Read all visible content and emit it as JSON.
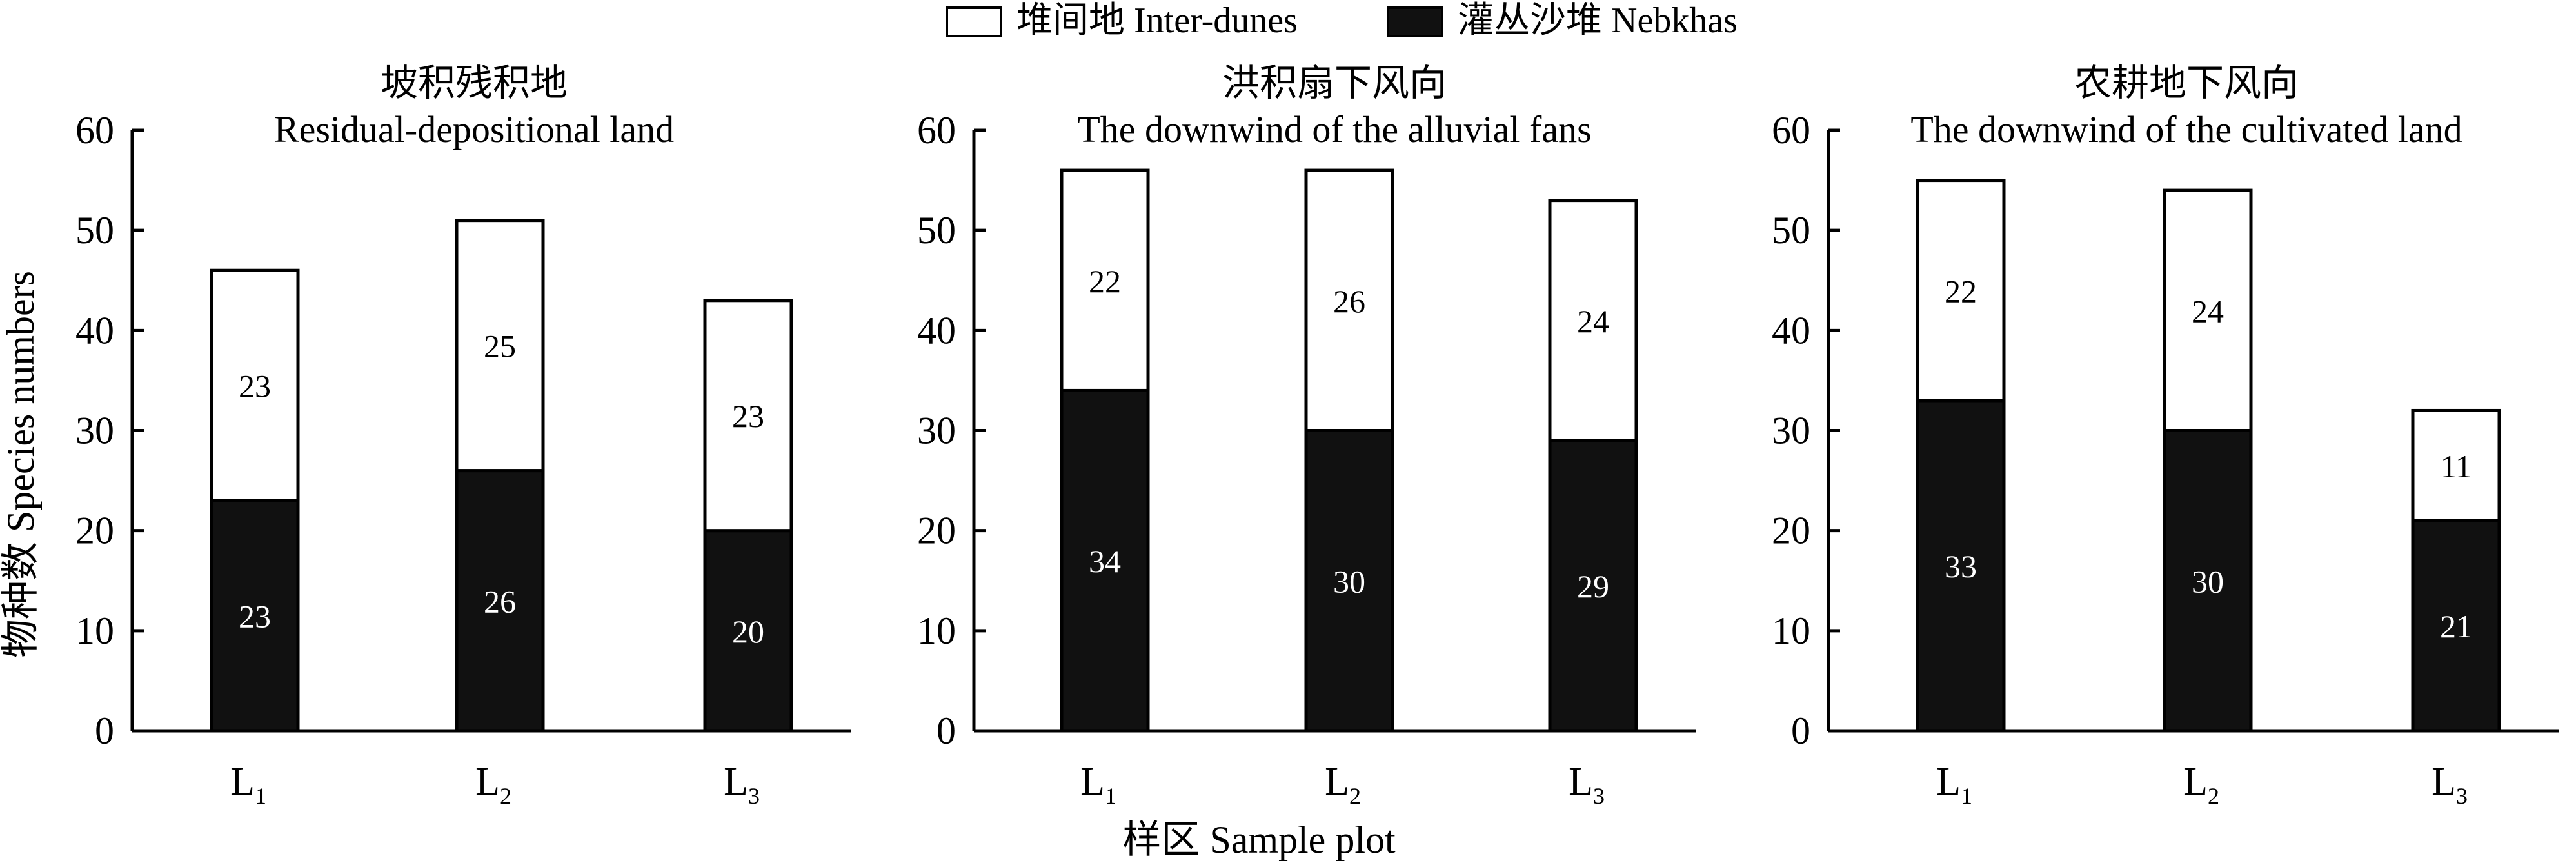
{
  "legend": {
    "items": [
      {
        "label": "堆间地 Inter-dunes",
        "color": "#ffffff"
      },
      {
        "label": "灌丛沙堆 Nebkhas",
        "color": "#111111"
      }
    ],
    "placement": "top-center"
  },
  "ylabel": "物种数 Species numbers",
  "xlabel": "样区 Sample plot",
  "chart_data": [
    {
      "type": "bar",
      "stacked": true,
      "title_cn": "坡积残积地",
      "title_en": "Residual-depositional land",
      "categories": [
        {
          "base": "L",
          "sub": "1"
        },
        {
          "base": "L",
          "sub": "2"
        },
        {
          "base": "L",
          "sub": "3"
        }
      ],
      "series": [
        {
          "name": "灌丛沙堆 Nebkhas",
          "values": [
            23,
            26,
            20
          ]
        },
        {
          "name": "堆间地 Inter-dunes",
          "values": [
            23,
            25,
            23
          ]
        }
      ],
      "ylim": [
        0,
        60
      ],
      "yticks": [
        0,
        10,
        20,
        30,
        40,
        50,
        60
      ],
      "grid": false
    },
    {
      "type": "bar",
      "stacked": true,
      "title_cn": "洪积扇下风向",
      "title_en": "The downwind of the alluvial fans",
      "categories": [
        {
          "base": "L",
          "sub": "1"
        },
        {
          "base": "L",
          "sub": "2"
        },
        {
          "base": "L",
          "sub": "3"
        }
      ],
      "series": [
        {
          "name": "灌丛沙堆 Nebkhas",
          "values": [
            34,
            30,
            29
          ]
        },
        {
          "name": "堆间地 Inter-dunes",
          "values": [
            22,
            26,
            24
          ]
        }
      ],
      "ylim": [
        0,
        60
      ],
      "yticks": [
        0,
        10,
        20,
        30,
        40,
        50,
        60
      ],
      "grid": false
    },
    {
      "type": "bar",
      "stacked": true,
      "title_cn": "农耕地下风向",
      "title_en": "The downwind of the cultivated land",
      "categories": [
        {
          "base": "L",
          "sub": "1"
        },
        {
          "base": "L",
          "sub": "2"
        },
        {
          "base": "L",
          "sub": "3"
        }
      ],
      "series": [
        {
          "name": "灌丛沙堆 Nebkhas",
          "values": [
            33,
            30,
            21
          ]
        },
        {
          "name": "堆间地 Inter-dunes",
          "values": [
            22,
            24,
            11
          ]
        }
      ],
      "ylim": [
        0,
        60
      ],
      "yticks": [
        0,
        10,
        20,
        30,
        40,
        50,
        60
      ],
      "grid": false
    }
  ]
}
